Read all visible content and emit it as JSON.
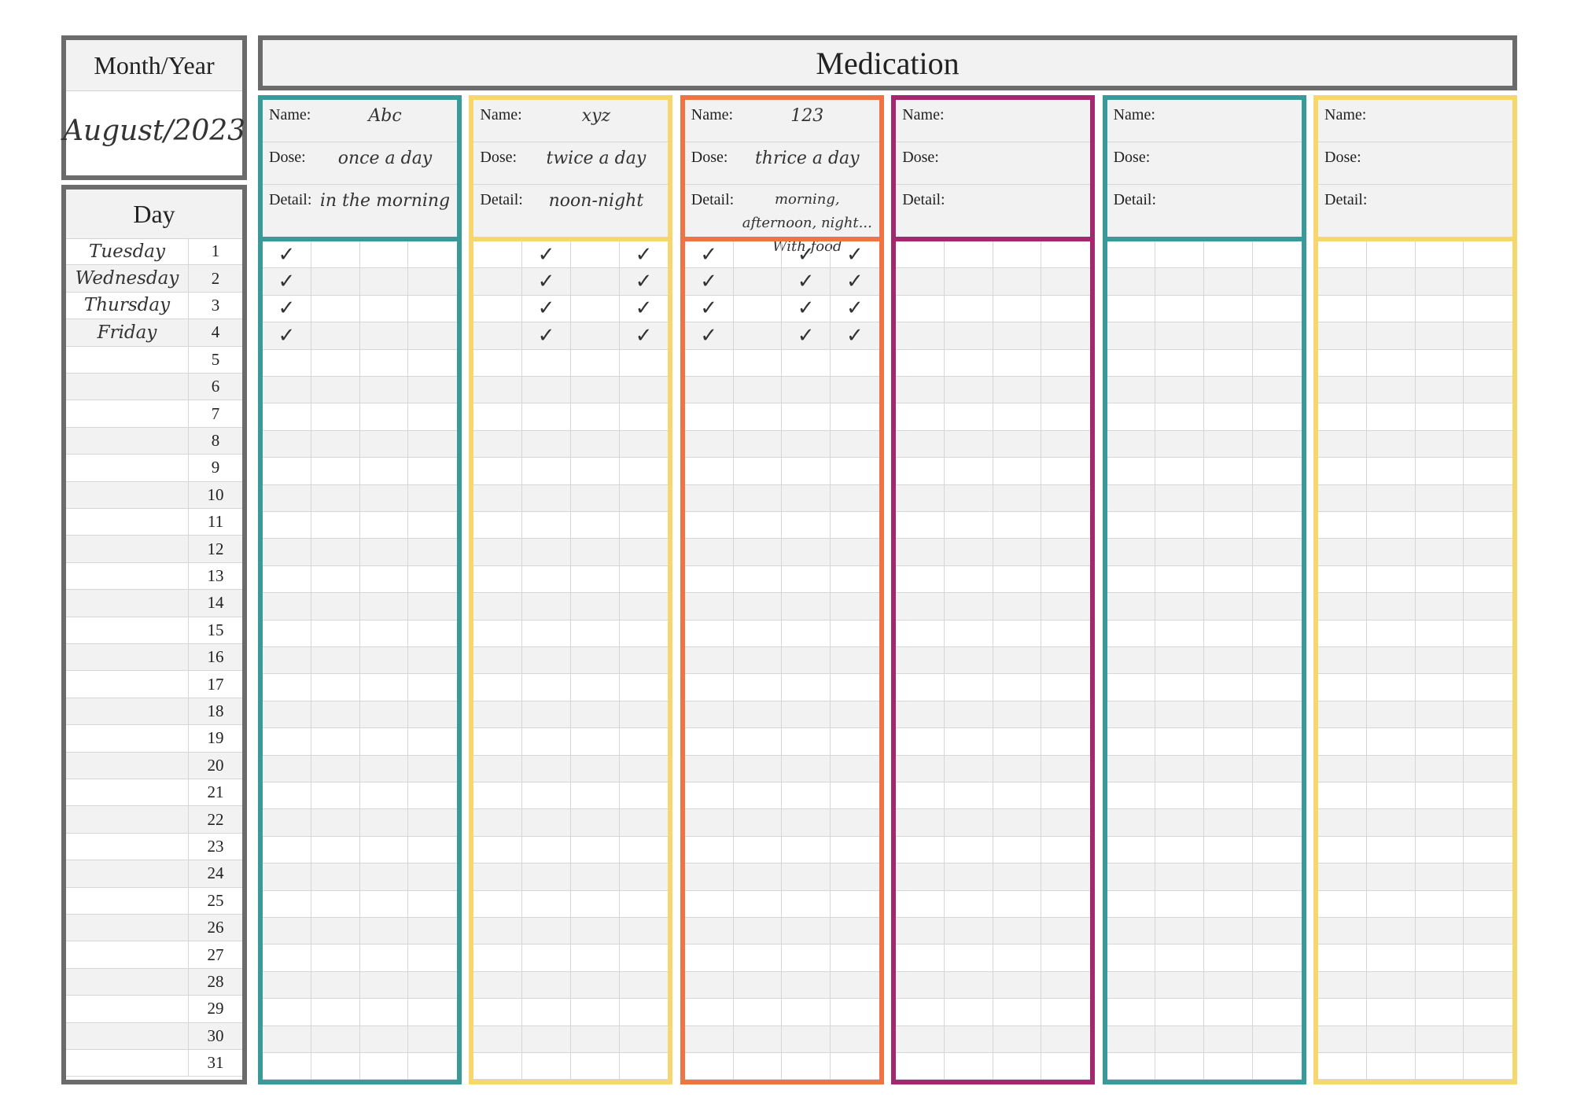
{
  "month_year": {
    "label": "Month/Year",
    "value": "August/2023"
  },
  "title": "Medication",
  "day_header": "Day",
  "days": [
    {
      "weekday": "Tuesday",
      "num": "1"
    },
    {
      "weekday": "Wednesday",
      "num": "2"
    },
    {
      "weekday": "Thursday",
      "num": "3"
    },
    {
      "weekday": "Friday",
      "num": "4"
    },
    {
      "weekday": "",
      "num": "5"
    },
    {
      "weekday": "",
      "num": "6"
    },
    {
      "weekday": "",
      "num": "7"
    },
    {
      "weekday": "",
      "num": "8"
    },
    {
      "weekday": "",
      "num": "9"
    },
    {
      "weekday": "",
      "num": "10"
    },
    {
      "weekday": "",
      "num": "11"
    },
    {
      "weekday": "",
      "num": "12"
    },
    {
      "weekday": "",
      "num": "13"
    },
    {
      "weekday": "",
      "num": "14"
    },
    {
      "weekday": "",
      "num": "15"
    },
    {
      "weekday": "",
      "num": "16"
    },
    {
      "weekday": "",
      "num": "17"
    },
    {
      "weekday": "",
      "num": "18"
    },
    {
      "weekday": "",
      "num": "19"
    },
    {
      "weekday": "",
      "num": "20"
    },
    {
      "weekday": "",
      "num": "21"
    },
    {
      "weekday": "",
      "num": "22"
    },
    {
      "weekday": "",
      "num": "23"
    },
    {
      "weekday": "",
      "num": "24"
    },
    {
      "weekday": "",
      "num": "25"
    },
    {
      "weekday": "",
      "num": "26"
    },
    {
      "weekday": "",
      "num": "27"
    },
    {
      "weekday": "",
      "num": "28"
    },
    {
      "weekday": "",
      "num": "29"
    },
    {
      "weekday": "",
      "num": "30"
    },
    {
      "weekday": "",
      "num": "31"
    }
  ],
  "labels": {
    "name": "Name:",
    "dose": "Dose:",
    "detail": "Detail:"
  },
  "check_symbol": "✓",
  "medications": [
    {
      "color": "#3a9a9a",
      "name": "Abc",
      "dose": "once a day",
      "detail": "in the morning",
      "checks": [
        [
          1,
          0,
          0,
          0
        ],
        [
          1,
          0,
          0,
          0
        ],
        [
          1,
          0,
          0,
          0
        ],
        [
          1,
          0,
          0,
          0
        ]
      ]
    },
    {
      "color": "#f5d76e",
      "name": "xyz",
      "dose": "twice a day",
      "detail": "noon-night",
      "checks": [
        [
          0,
          1,
          0,
          1
        ],
        [
          0,
          1,
          0,
          1
        ],
        [
          0,
          1,
          0,
          1
        ],
        [
          0,
          1,
          0,
          1
        ]
      ]
    },
    {
      "color": "#ee7446",
      "name": "123",
      "dose": "thrice a day",
      "detail": "morning, afternoon, night... With food",
      "checks": [
        [
          1,
          0,
          1,
          1
        ],
        [
          1,
          0,
          1,
          1
        ],
        [
          1,
          0,
          1,
          1
        ],
        [
          1,
          0,
          1,
          1
        ]
      ]
    },
    {
      "color": "#a3286e",
      "name": "",
      "dose": "",
      "detail": "",
      "checks": []
    },
    {
      "color": "#3a9a9a",
      "name": "",
      "dose": "",
      "detail": "",
      "checks": []
    },
    {
      "color": "#f5d76e",
      "name": "",
      "dose": "",
      "detail": "",
      "checks": []
    }
  ]
}
